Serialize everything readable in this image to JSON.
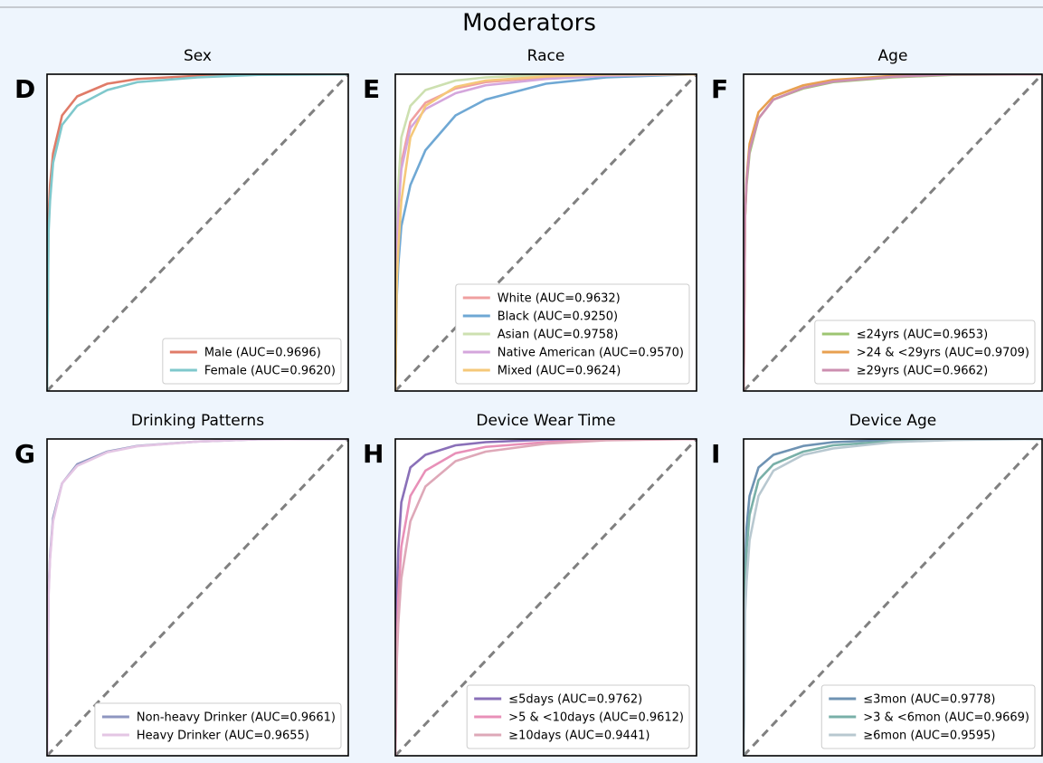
{
  "title": "Moderators",
  "chart_data": [
    {
      "type": "line",
      "title": "Sex",
      "panel_label": "D",
      "xlim": [
        0,
        1
      ],
      "ylim": [
        0,
        1
      ],
      "legend": "lower right",
      "x": [
        0,
        0.005,
        0.01,
        0.02,
        0.05,
        0.1,
        0.2,
        0.3,
        0.5,
        0.7,
        1
      ],
      "series": [
        {
          "name": "Male (AUC=0.9696)",
          "color": "#e07b68",
          "values": [
            0,
            0.55,
            0.65,
            0.75,
            0.87,
            0.93,
            0.97,
            0.985,
            0.995,
            1,
            1
          ]
        },
        {
          "name": "Female (AUC=0.9620)",
          "color": "#7fc8cc",
          "values": [
            0,
            0.5,
            0.6,
            0.72,
            0.84,
            0.9,
            0.95,
            0.975,
            0.99,
            0.998,
            1
          ]
        }
      ]
    },
    {
      "type": "line",
      "title": "Race",
      "panel_label": "E",
      "xlim": [
        0,
        1
      ],
      "ylim": [
        0,
        1
      ],
      "legend": "lower right",
      "x": [
        0,
        0.005,
        0.01,
        0.02,
        0.05,
        0.1,
        0.2,
        0.3,
        0.5,
        0.7,
        1
      ],
      "series": [
        {
          "name": "White (AUC=0.9632)",
          "color": "#f0a0a0",
          "values": [
            0,
            0.45,
            0.58,
            0.72,
            0.85,
            0.91,
            0.955,
            0.975,
            0.99,
            0.998,
            1
          ]
        },
        {
          "name": "Black (AUC=0.9250)",
          "color": "#6fa8d4",
          "values": [
            0,
            0.3,
            0.4,
            0.52,
            0.65,
            0.76,
            0.87,
            0.92,
            0.97,
            0.99,
            1
          ]
        },
        {
          "name": "Asian (AUC=0.9758)",
          "color": "#cde0b0",
          "values": [
            0,
            0.5,
            0.65,
            0.8,
            0.9,
            0.95,
            0.98,
            0.99,
            0.998,
            1,
            1
          ]
        },
        {
          "name": "Native American (AUC=0.9570)",
          "color": "#d4a6dc",
          "values": [
            0,
            0.45,
            0.57,
            0.7,
            0.83,
            0.89,
            0.94,
            0.965,
            0.985,
            0.995,
            1
          ]
        },
        {
          "name": "Mixed (AUC=0.9624)",
          "color": "#f5c87a",
          "values": [
            0,
            0.35,
            0.45,
            0.6,
            0.8,
            0.9,
            0.96,
            0.98,
            0.993,
            0.999,
            1
          ]
        }
      ]
    },
    {
      "type": "line",
      "title": "Age",
      "panel_label": "F",
      "xlim": [
        0,
        1
      ],
      "ylim": [
        0,
        1
      ],
      "legend": "lower right",
      "x": [
        0,
        0.005,
        0.01,
        0.02,
        0.05,
        0.1,
        0.2,
        0.3,
        0.5,
        0.7,
        1
      ],
      "series": [
        {
          "name": "≤24yrs (AUC=0.9653)",
          "color": "#9dc572",
          "values": [
            0,
            0.55,
            0.65,
            0.75,
            0.86,
            0.92,
            0.955,
            0.975,
            0.99,
            0.998,
            1
          ]
        },
        {
          "name": ">24 & <29yrs (AUC=0.9709)",
          "color": "#e8a050",
          "values": [
            0,
            0.55,
            0.67,
            0.78,
            0.88,
            0.93,
            0.965,
            0.982,
            0.995,
            1,
            1
          ]
        },
        {
          "name": "≥29yrs (AUC=0.9662)",
          "color": "#cc8fb0",
          "values": [
            0,
            0.55,
            0.66,
            0.76,
            0.86,
            0.92,
            0.957,
            0.977,
            0.992,
            0.999,
            1
          ]
        }
      ]
    },
    {
      "type": "line",
      "title": "Drinking Patterns",
      "panel_label": "G",
      "xlim": [
        0,
        1
      ],
      "ylim": [
        0,
        1
      ],
      "legend": "lower right",
      "x": [
        0,
        0.005,
        0.01,
        0.02,
        0.05,
        0.1,
        0.2,
        0.3,
        0.5,
        0.7,
        1
      ],
      "series": [
        {
          "name": "Non-heavy Drinker (AUC=0.9661)",
          "color": "#8e96c0",
          "values": [
            0,
            0.52,
            0.63,
            0.75,
            0.86,
            0.92,
            0.96,
            0.978,
            0.992,
            0.999,
            1
          ]
        },
        {
          "name": "Heavy Drinker (AUC=0.9655)",
          "color": "#e4c6e4",
          "values": [
            0,
            0.5,
            0.62,
            0.74,
            0.86,
            0.915,
            0.958,
            0.977,
            0.992,
            0.999,
            1
          ]
        }
      ]
    },
    {
      "type": "line",
      "title": "Device Wear Time",
      "panel_label": "H",
      "xlim": [
        0,
        1
      ],
      "ylim": [
        0,
        1
      ],
      "legend": "lower right",
      "x": [
        0,
        0.005,
        0.01,
        0.02,
        0.05,
        0.1,
        0.2,
        0.3,
        0.5,
        0.7,
        1
      ],
      "series": [
        {
          "name": "≤5days (AUC=0.9762)",
          "color": "#8a70b8",
          "values": [
            0,
            0.5,
            0.65,
            0.8,
            0.91,
            0.95,
            0.98,
            0.99,
            0.998,
            1,
            1
          ]
        },
        {
          "name": ">5 & <10days (AUC=0.9612)",
          "color": "#e890b8",
          "values": [
            0,
            0.35,
            0.5,
            0.66,
            0.82,
            0.9,
            0.955,
            0.975,
            0.99,
            0.998,
            1
          ]
        },
        {
          "name": "≥10days (AUC=0.9441)",
          "color": "#dea8b8",
          "values": [
            0,
            0.3,
            0.42,
            0.56,
            0.74,
            0.85,
            0.93,
            0.96,
            0.985,
            0.996,
            1
          ]
        }
      ]
    },
    {
      "type": "line",
      "title": "Device Age",
      "panel_label": "I",
      "xlim": [
        0,
        1
      ],
      "ylim": [
        0,
        1
      ],
      "legend": "lower right",
      "x": [
        0,
        0.005,
        0.01,
        0.02,
        0.05,
        0.1,
        0.2,
        0.3,
        0.5,
        0.7,
        1
      ],
      "series": [
        {
          "name": "≤3mon (AUC=0.9778)",
          "color": "#6f93b3",
          "values": [
            0,
            0.6,
            0.72,
            0.82,
            0.91,
            0.95,
            0.978,
            0.99,
            0.998,
            1,
            1
          ]
        },
        {
          "name": ">3 & <6mon (AUC=0.9669)",
          "color": "#79b0a8",
          "values": [
            0,
            0.55,
            0.65,
            0.76,
            0.87,
            0.92,
            0.96,
            0.98,
            0.993,
            0.999,
            1
          ]
        },
        {
          "name": "≥6mon (AUC=0.9595)",
          "color": "#b8c8d0",
          "values": [
            0,
            0.45,
            0.55,
            0.68,
            0.82,
            0.9,
            0.95,
            0.97,
            0.99,
            0.997,
            1
          ]
        }
      ]
    }
  ]
}
